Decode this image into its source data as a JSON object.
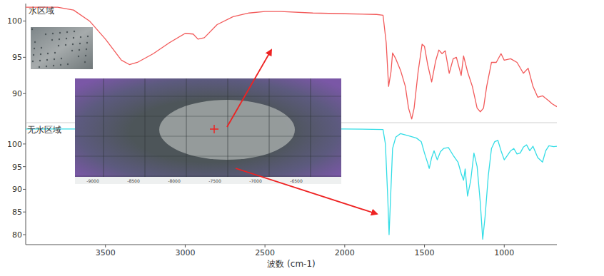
{
  "chart_data": [
    {
      "type": "line",
      "title": "水区域",
      "x": [
        4000,
        3800,
        3700,
        3600,
        3500,
        3400,
        3350,
        3300,
        3200,
        3100,
        3000,
        2950,
        2920,
        2880,
        2800,
        2700,
        2600,
        2500,
        2400,
        2200,
        2000,
        1800,
        1760,
        1740,
        1725,
        1710,
        1700,
        1680,
        1650,
        1620,
        1600,
        1580,
        1565,
        1540,
        1515,
        1500,
        1480,
        1455,
        1430,
        1410,
        1390,
        1370,
        1345,
        1320,
        1300,
        1270,
        1255,
        1230,
        1200,
        1170,
        1150,
        1130,
        1110,
        1080,
        1050,
        1020,
        1000,
        960,
        920,
        880,
        850,
        820,
        790,
        760,
        720,
        700,
        670
      ],
      "series": [
        {
          "color": "#f25a5a",
          "values": [
            101.9,
            101.9,
            101.5,
            100.0,
            97.5,
            94.6,
            94.0,
            94.3,
            95.5,
            97.0,
            98.3,
            98.2,
            97.5,
            97.7,
            99.5,
            100.6,
            101.1,
            101.3,
            101.3,
            101.1,
            101.0,
            100.9,
            100.8,
            97.0,
            91.0,
            93.0,
            95.6,
            94.8,
            93.2,
            91.0,
            88.0,
            86.5,
            88.0,
            93.0,
            96.8,
            96.5,
            94.0,
            91.6,
            94.5,
            96.0,
            95.5,
            95.9,
            92.8,
            94.8,
            95.0,
            92.5,
            95.2,
            93.0,
            91.0,
            88.0,
            87.5,
            88.0,
            91.0,
            94.3,
            94.3,
            95.5,
            94.6,
            94.8,
            94.3,
            92.8,
            93.5,
            91.0,
            89.5,
            89.7,
            89.0,
            88.6,
            88.2
          ]
        }
      ],
      "xlim": [
        4000,
        670
      ],
      "ylim": [
        86.0,
        102.4
      ],
      "yticks": [
        90,
        95,
        100
      ],
      "tick_labels": "y"
    },
    {
      "type": "line",
      "title": "无水区域",
      "xlabel": "波数 (cm-1)",
      "x": [
        4000,
        3500,
        3000,
        2500,
        2000,
        1760,
        1745,
        1730,
        1722,
        1715,
        1700,
        1680,
        1650,
        1600,
        1550,
        1520,
        1500,
        1480,
        1470,
        1455,
        1440,
        1420,
        1400,
        1380,
        1350,
        1320,
        1290,
        1270,
        1255,
        1245,
        1230,
        1210,
        1190,
        1170,
        1150,
        1135,
        1120,
        1100,
        1080,
        1060,
        1040,
        1020,
        1000,
        980,
        960,
        940,
        920,
        900,
        880,
        860,
        840,
        820,
        790,
        760,
        740,
        720,
        690,
        670
      ],
      "series": [
        {
          "color": "#33dde6",
          "values": [
            103.3,
            103.3,
            103.3,
            103.3,
            103.3,
            103.2,
            100.0,
            88.0,
            80.0,
            86.0,
            99.0,
            101.5,
            102.3,
            101.8,
            101.3,
            100.5,
            98.0,
            95.8,
            94.6,
            97.0,
            98.5,
            96.5,
            98.3,
            99.0,
            99.2,
            97.5,
            96.0,
            93.5,
            92.0,
            94.5,
            88.5,
            92.0,
            98.0,
            95.0,
            87.0,
            79.0,
            84.0,
            93.0,
            99.0,
            100.5,
            100.8,
            98.5,
            96.5,
            97.5,
            98.5,
            99.0,
            97.8,
            98.0,
            99.3,
            99.8,
            98.5,
            99.5,
            97.0,
            96.0,
            98.5,
            99.6,
            99.4,
            99.5
          ]
        }
      ],
      "xlim": [
        4000,
        670
      ],
      "xticks": [
        3500,
        3000,
        2500,
        2000,
        1500,
        1000
      ],
      "ylim": [
        77.8,
        104.7
      ],
      "yticks": [
        80,
        85,
        90,
        95,
        100
      ]
    }
  ],
  "inset_image": {
    "xticks": [
      -9000,
      -8500,
      -8000,
      -7500,
      -7000,
      -6500
    ]
  }
}
